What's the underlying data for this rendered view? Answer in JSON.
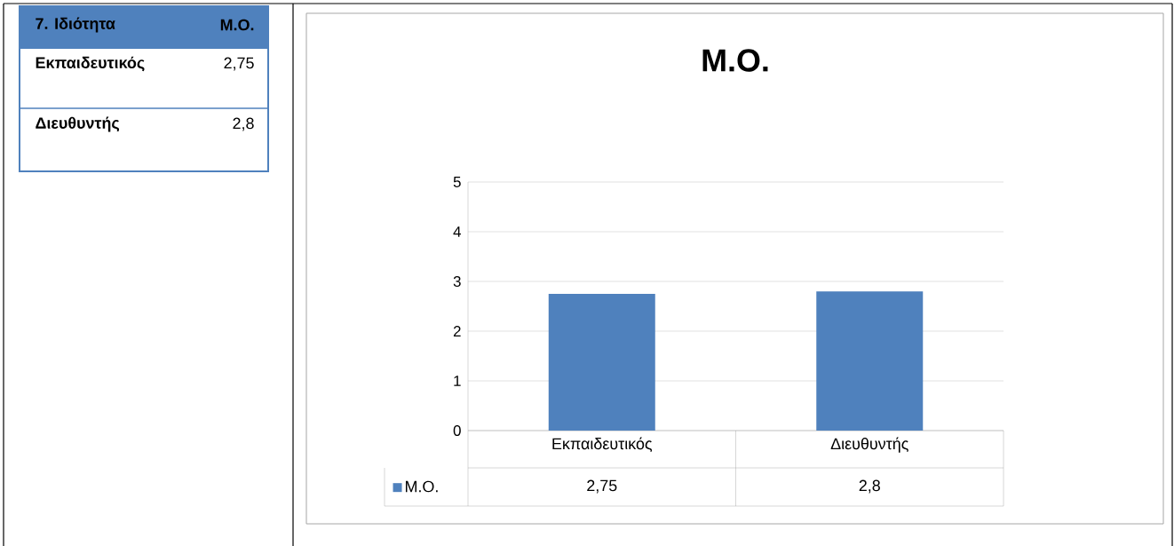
{
  "chart_data": [
    {
      "type": "other",
      "annotations": [
        "7. Ιδιότητα",
        "Μ.Ο.",
        "Εκπαιδευτικός",
        "2,75",
        "Διευθυντής",
        "2,8"
      ]
    },
    {
      "type": "bar",
      "title": "Μ.Ο.",
      "categories": [
        "Εκπαιδευτικός",
        "Διευθυντής"
      ],
      "series": [
        {
          "name": "Μ.Ο.",
          "color": "#4f81bd",
          "values": [
            2.75,
            2.8
          ],
          "value_labels": [
            "2,75",
            "2,8"
          ]
        }
      ],
      "ylim": [
        0,
        5
      ],
      "yticks": [
        0,
        1,
        2,
        3,
        4,
        5
      ],
      "grid": "y",
      "legend": "bottom"
    }
  ]
}
